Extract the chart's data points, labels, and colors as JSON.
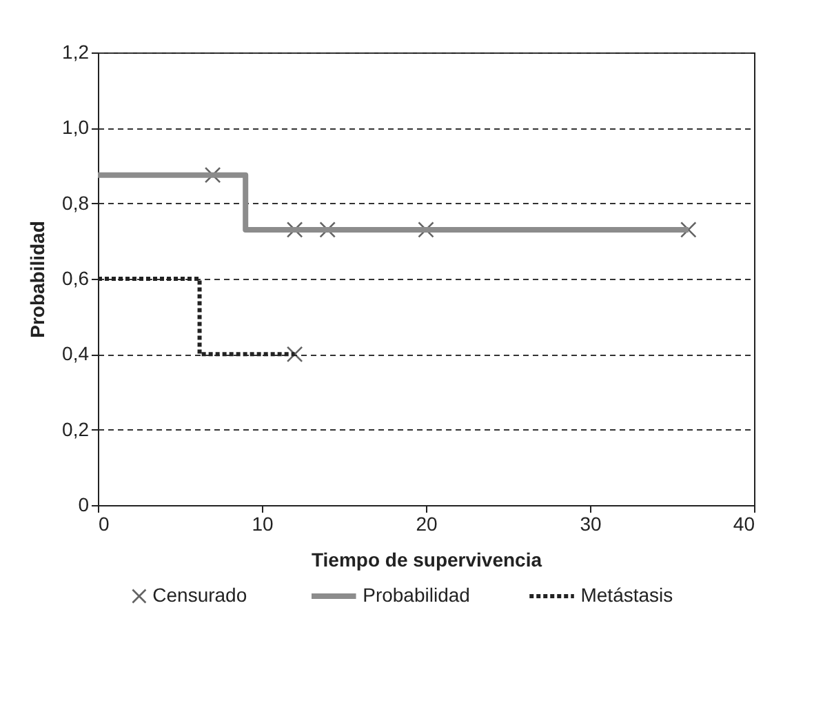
{
  "chart_data": {
    "type": "step",
    "xlabel": "Tiempo de supervivencia",
    "ylabel": "Probabilidad",
    "xlim": [
      0,
      40
    ],
    "xticks": [
      0,
      10,
      20,
      30,
      40
    ],
    "ylim": [
      0,
      1.2
    ],
    "yticks": [
      0,
      {
        "value": 0.2,
        "label": "0,2"
      },
      {
        "value": 0.4,
        "label": "0,4"
      },
      {
        "value": 0.6,
        "label": "0,6"
      },
      {
        "value": 0.8,
        "label": "0,8"
      },
      {
        "value": 1.0,
        "label": "1,0"
      },
      {
        "value": 1.2,
        "label": "1,2"
      }
    ],
    "grid": "y",
    "legend": "bottom",
    "series": [
      {
        "name": "Censurado",
        "type": "scatter",
        "marker": "cross",
        "color": "#222222",
        "x": [
          7,
          12,
          14,
          20,
          36,
          12
        ],
        "values": [
          0.875,
          0.73,
          0.73,
          0.73,
          0.73,
          0.4
        ]
      },
      {
        "name": "Probabilidad",
        "line_style": "solid",
        "color": "#8c8c8c",
        "x": [
          0,
          9,
          36
        ],
        "values": [
          0.875,
          0.73,
          0.73
        ]
      },
      {
        "name": "Metástasis",
        "line_style": "dotted",
        "color": "#222222",
        "x": [
          0,
          6.2,
          12
        ],
        "values": [
          0.6,
          0.4,
          0.4
        ]
      }
    ]
  }
}
